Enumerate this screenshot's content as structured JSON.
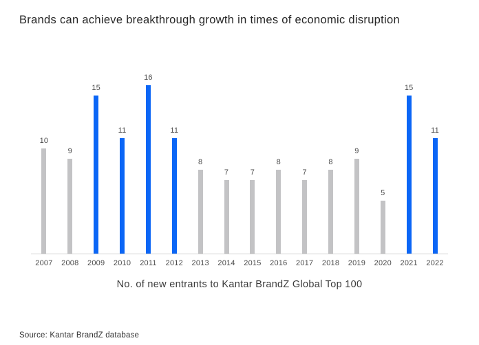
{
  "title": "Brands can achieve breakthrough growth in times of economic disruption",
  "source": "Source: Kantar BrandZ database",
  "colors": {
    "bar_default": "#c3c3c5",
    "bar_highlight": "#0b66f6",
    "axis_line": "#d2d2d2"
  },
  "chart_data": {
    "type": "bar",
    "title": "Brands can achieve breakthrough growth in times of economic disruption",
    "xlabel": "No. of new entrants to Kantar BrandZ Global Top 100",
    "ylabel": "",
    "categories": [
      "2007",
      "2008",
      "2009",
      "2010",
      "2011",
      "2012",
      "2013",
      "2014",
      "2015",
      "2016",
      "2017",
      "2018",
      "2019",
      "2020",
      "2021",
      "2022"
    ],
    "values": [
      10,
      9,
      15,
      11,
      16,
      11,
      8,
      7,
      7,
      8,
      7,
      8,
      9,
      5,
      15,
      11
    ],
    "highlighted": [
      false,
      false,
      true,
      true,
      true,
      true,
      false,
      false,
      false,
      false,
      false,
      false,
      false,
      false,
      true,
      true
    ],
    "ylim": [
      0,
      16
    ],
    "grid": false,
    "legend": false,
    "data_labels": true
  }
}
